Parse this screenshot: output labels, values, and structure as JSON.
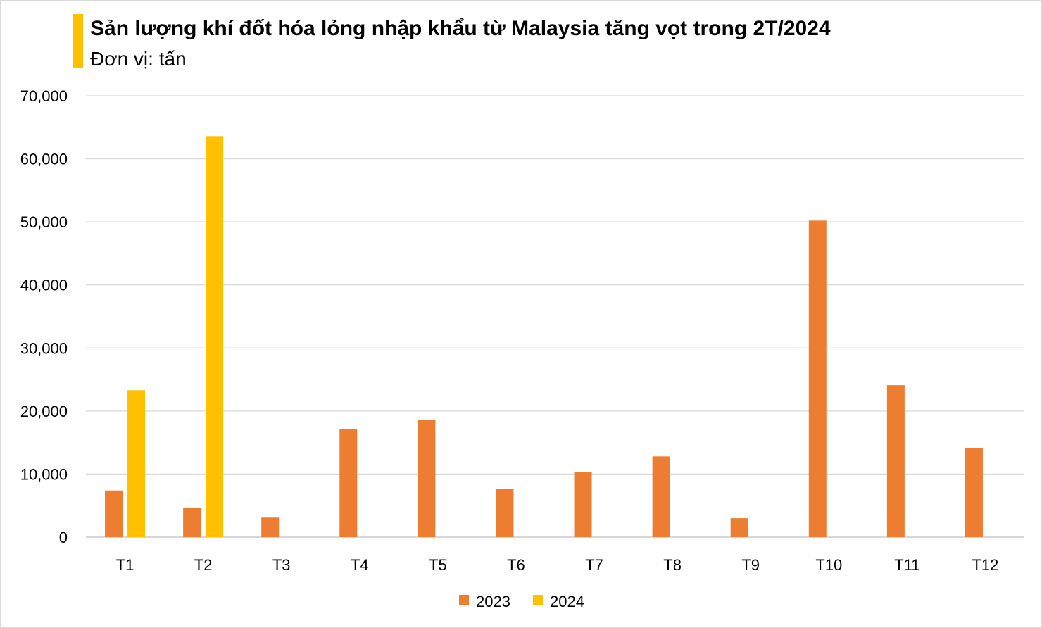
{
  "chart_data": {
    "type": "bar",
    "title": "Sản lượng khí đốt hóa lỏng nhập khẩu từ Malaysia tăng vọt trong 2T/2024",
    "subtitle": "Đơn vị: tấn",
    "categories": [
      "T1",
      "T2",
      "T3",
      "T4",
      "T5",
      "T6",
      "T7",
      "T8",
      "T9",
      "T10",
      "T11",
      "T12"
    ],
    "series": [
      {
        "name": "2023",
        "color": "#ed7d31",
        "values": [
          7400,
          4700,
          3100,
          17100,
          18600,
          7600,
          10300,
          12800,
          3000,
          50200,
          24100,
          14100
        ]
      },
      {
        "name": "2024",
        "color": "#ffc000",
        "values": [
          23300,
          63600,
          null,
          null,
          null,
          null,
          null,
          null,
          null,
          null,
          null,
          null
        ]
      }
    ],
    "ylim": [
      0,
      70000
    ],
    "yticks": [
      "0",
      "10,000",
      "20,000",
      "30,000",
      "40,000",
      "50,000",
      "60,000",
      "70,000"
    ],
    "grid": true,
    "legend": "bottom",
    "accent_color": "#ffc000"
  }
}
